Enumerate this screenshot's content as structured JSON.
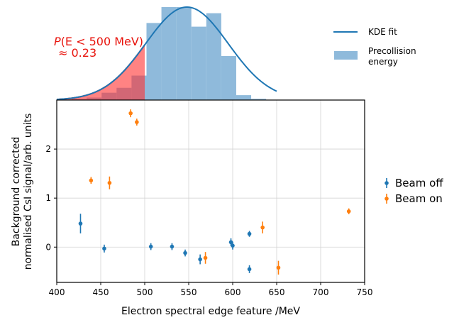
{
  "chart_data": [
    {
      "type": "histogram",
      "panel": "top",
      "annotation": {
        "line1_prefix": "P",
        "line1_suffix": "(E < 500 MeV)",
        "line2": "≈ 0.23"
      },
      "histogram": {
        "name": "Precollision energy",
        "color": "#8fbadb",
        "bin_edges": [
          400,
          417,
          434,
          451,
          468,
          485,
          502,
          519,
          536,
          553,
          570,
          587,
          604,
          621,
          638
        ],
        "counts": [
          0,
          1,
          2,
          6,
          10,
          20,
          63,
          76,
          76,
          60,
          71,
          36,
          4,
          1
        ]
      },
      "kde": {
        "name": "KDE fit",
        "color": "#1f77b4",
        "mean": 548,
        "sigma": 47,
        "peak": 76,
        "xlim": [
          400,
          650
        ]
      },
      "shaded_region": {
        "x_max": 500,
        "color": "#ff3030"
      },
      "legend": {
        "entries": [
          "KDE fit",
          "Precollision\nenergy"
        ],
        "position": "top-right"
      }
    },
    {
      "type": "scatter",
      "panel": "bottom",
      "xlabel": "Electron spectral edge feature /MeV",
      "ylabel_line1": "Background corrected",
      "ylabel_line2": "normalised CsI signal/arb. units",
      "xlim": [
        400,
        750
      ],
      "ylim": [
        -0.72,
        3.0
      ],
      "xticks": [
        400,
        450,
        500,
        550,
        600,
        650,
        700,
        750
      ],
      "yticks": [
        0,
        1,
        2
      ],
      "grid": true,
      "legend_position": "right",
      "series": [
        {
          "name": "Beam off",
          "color": "#1f77b4",
          "points": [
            {
              "x": 427,
              "y": 0.48,
              "err": 0.2
            },
            {
              "x": 454,
              "y": -0.03,
              "err": 0.08
            },
            {
              "x": 507,
              "y": 0.01,
              "err": 0.07
            },
            {
              "x": 531,
              "y": 0.01,
              "err": 0.07
            },
            {
              "x": 546,
              "y": -0.12,
              "err": 0.07
            },
            {
              "x": 563,
              "y": -0.25,
              "err": 0.1
            },
            {
              "x": 598,
              "y": 0.1,
              "err": 0.08
            },
            {
              "x": 600,
              "y": 0.03,
              "err": 0.08
            },
            {
              "x": 619,
              "y": 0.27,
              "err": 0.06
            },
            {
              "x": 619,
              "y": -0.45,
              "err": 0.08
            }
          ]
        },
        {
          "name": "Beam on",
          "color": "#ff7f0e",
          "points": [
            {
              "x": 439,
              "y": 1.36,
              "err": 0.07
            },
            {
              "x": 460,
              "y": 1.31,
              "err": 0.13
            },
            {
              "x": 484,
              "y": 2.73,
              "err": 0.08
            },
            {
              "x": 491,
              "y": 2.55,
              "err": 0.07
            },
            {
              "x": 569,
              "y": -0.22,
              "err": 0.12
            },
            {
              "x": 634,
              "y": 0.4,
              "err": 0.12
            },
            {
              "x": 652,
              "y": -0.42,
              "err": 0.14
            },
            {
              "x": 732,
              "y": 0.73,
              "err": 0.06
            }
          ]
        }
      ]
    }
  ]
}
